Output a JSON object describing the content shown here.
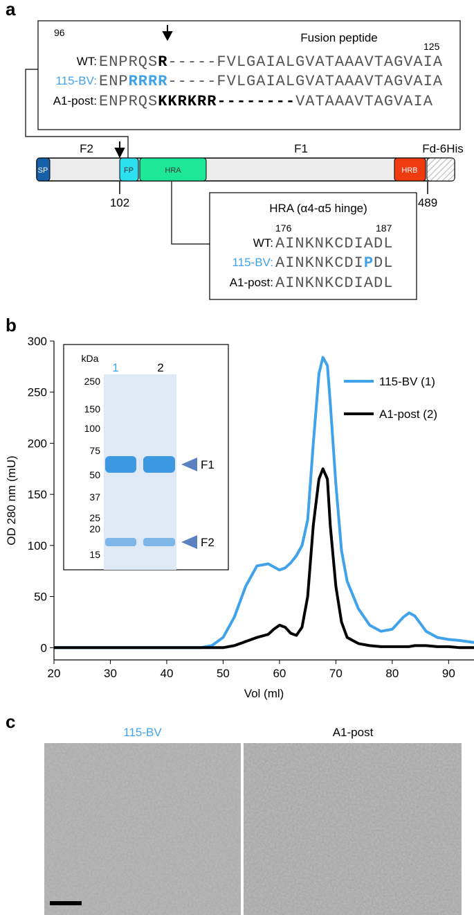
{
  "panel_a": {
    "label": "a",
    "fusion_box": {
      "title": "Fusion peptide",
      "start": 96,
      "end": 125,
      "rows": [
        {
          "name": "WT:",
          "segments": [
            "ENPRQS",
            "R",
            "-----FVLGAIALGVATAAAVTAGVAIA"
          ]
        },
        {
          "name": "115-BV:",
          "segments": [
            "ENP",
            "RRRR",
            "-----FVLGAIALGVATAAAVTAGVAIA"
          ]
        },
        {
          "name": "A1-post:",
          "segments": [
            "ENPRQS",
            "KKRKRR--------",
            "VATAAAVTAGVAIA"
          ]
        }
      ]
    },
    "domain_map": {
      "regions": [
        "F2",
        "F1",
        "Fd-6His"
      ],
      "domains": [
        "SP",
        "FP",
        "HRA",
        "HRB"
      ],
      "positions": [
        102,
        489
      ]
    },
    "hra_box": {
      "title": "HRA (α4-α5 hinge)",
      "start": 176,
      "end": 187,
      "rows": [
        {
          "name": "WT:",
          "segments": [
            "AINKNKCDIADL"
          ]
        },
        {
          "name": "115-BV:",
          "segments": [
            "AINKNKCDI",
            "P",
            "DL"
          ]
        },
        {
          "name": "A1-post:",
          "segments": [
            "AINKNKCDIADL"
          ]
        }
      ]
    }
  },
  "panel_b": {
    "label": "b",
    "gel": {
      "unit": "kDa",
      "lanes": [
        "1",
        "2"
      ],
      "markers": [
        250,
        150,
        100,
        75,
        50,
        37,
        25,
        20,
        15
      ],
      "bands": [
        "F1",
        "F2"
      ]
    }
  },
  "chart_data": {
    "type": "line",
    "x_label": "Vol (ml)",
    "y_label": "OD 280 nm (mU)",
    "x": [
      20,
      30,
      40,
      46,
      48,
      50,
      52,
      54,
      56,
      58,
      59,
      60,
      61,
      62,
      63,
      64,
      65,
      66,
      67,
      67.7,
      68.5,
      69,
      70,
      71,
      72,
      74,
      76,
      78,
      80,
      82,
      83,
      84,
      86,
      88,
      90,
      92,
      94.5
    ],
    "series": [
      {
        "name": "115-BV (1)",
        "color": "#3fa2ea",
        "values": [
          0,
          0,
          0,
          0,
          2,
          10,
          30,
          60,
          80,
          82,
          79,
          76,
          78,
          83,
          90,
          100,
          125,
          200,
          268,
          284,
          276,
          240,
          160,
          95,
          65,
          38,
          22,
          16,
          18,
          30,
          34,
          31,
          16,
          10,
          8,
          7,
          5
        ]
      },
      {
        "name": "A1-post (2)",
        "color": "#000000",
        "values": [
          0,
          0,
          0,
          0,
          0,
          0,
          2,
          6,
          10,
          13,
          18,
          22,
          20,
          14,
          12,
          20,
          50,
          120,
          165,
          175,
          165,
          120,
          60,
          25,
          10,
          4,
          2,
          1,
          1,
          1,
          1,
          2,
          2,
          1,
          1,
          0,
          0
        ]
      }
    ],
    "xlim": [
      20,
      94.5
    ],
    "ylim": [
      -12,
      300
    ],
    "xticks": [
      20,
      30,
      40,
      50,
      60,
      70,
      80,
      90
    ],
    "yticks": [
      0,
      50,
      100,
      150,
      200,
      250,
      300
    ]
  },
  "panel_c": {
    "label": "c",
    "images": [
      "115-BV",
      "A1-post"
    ]
  }
}
